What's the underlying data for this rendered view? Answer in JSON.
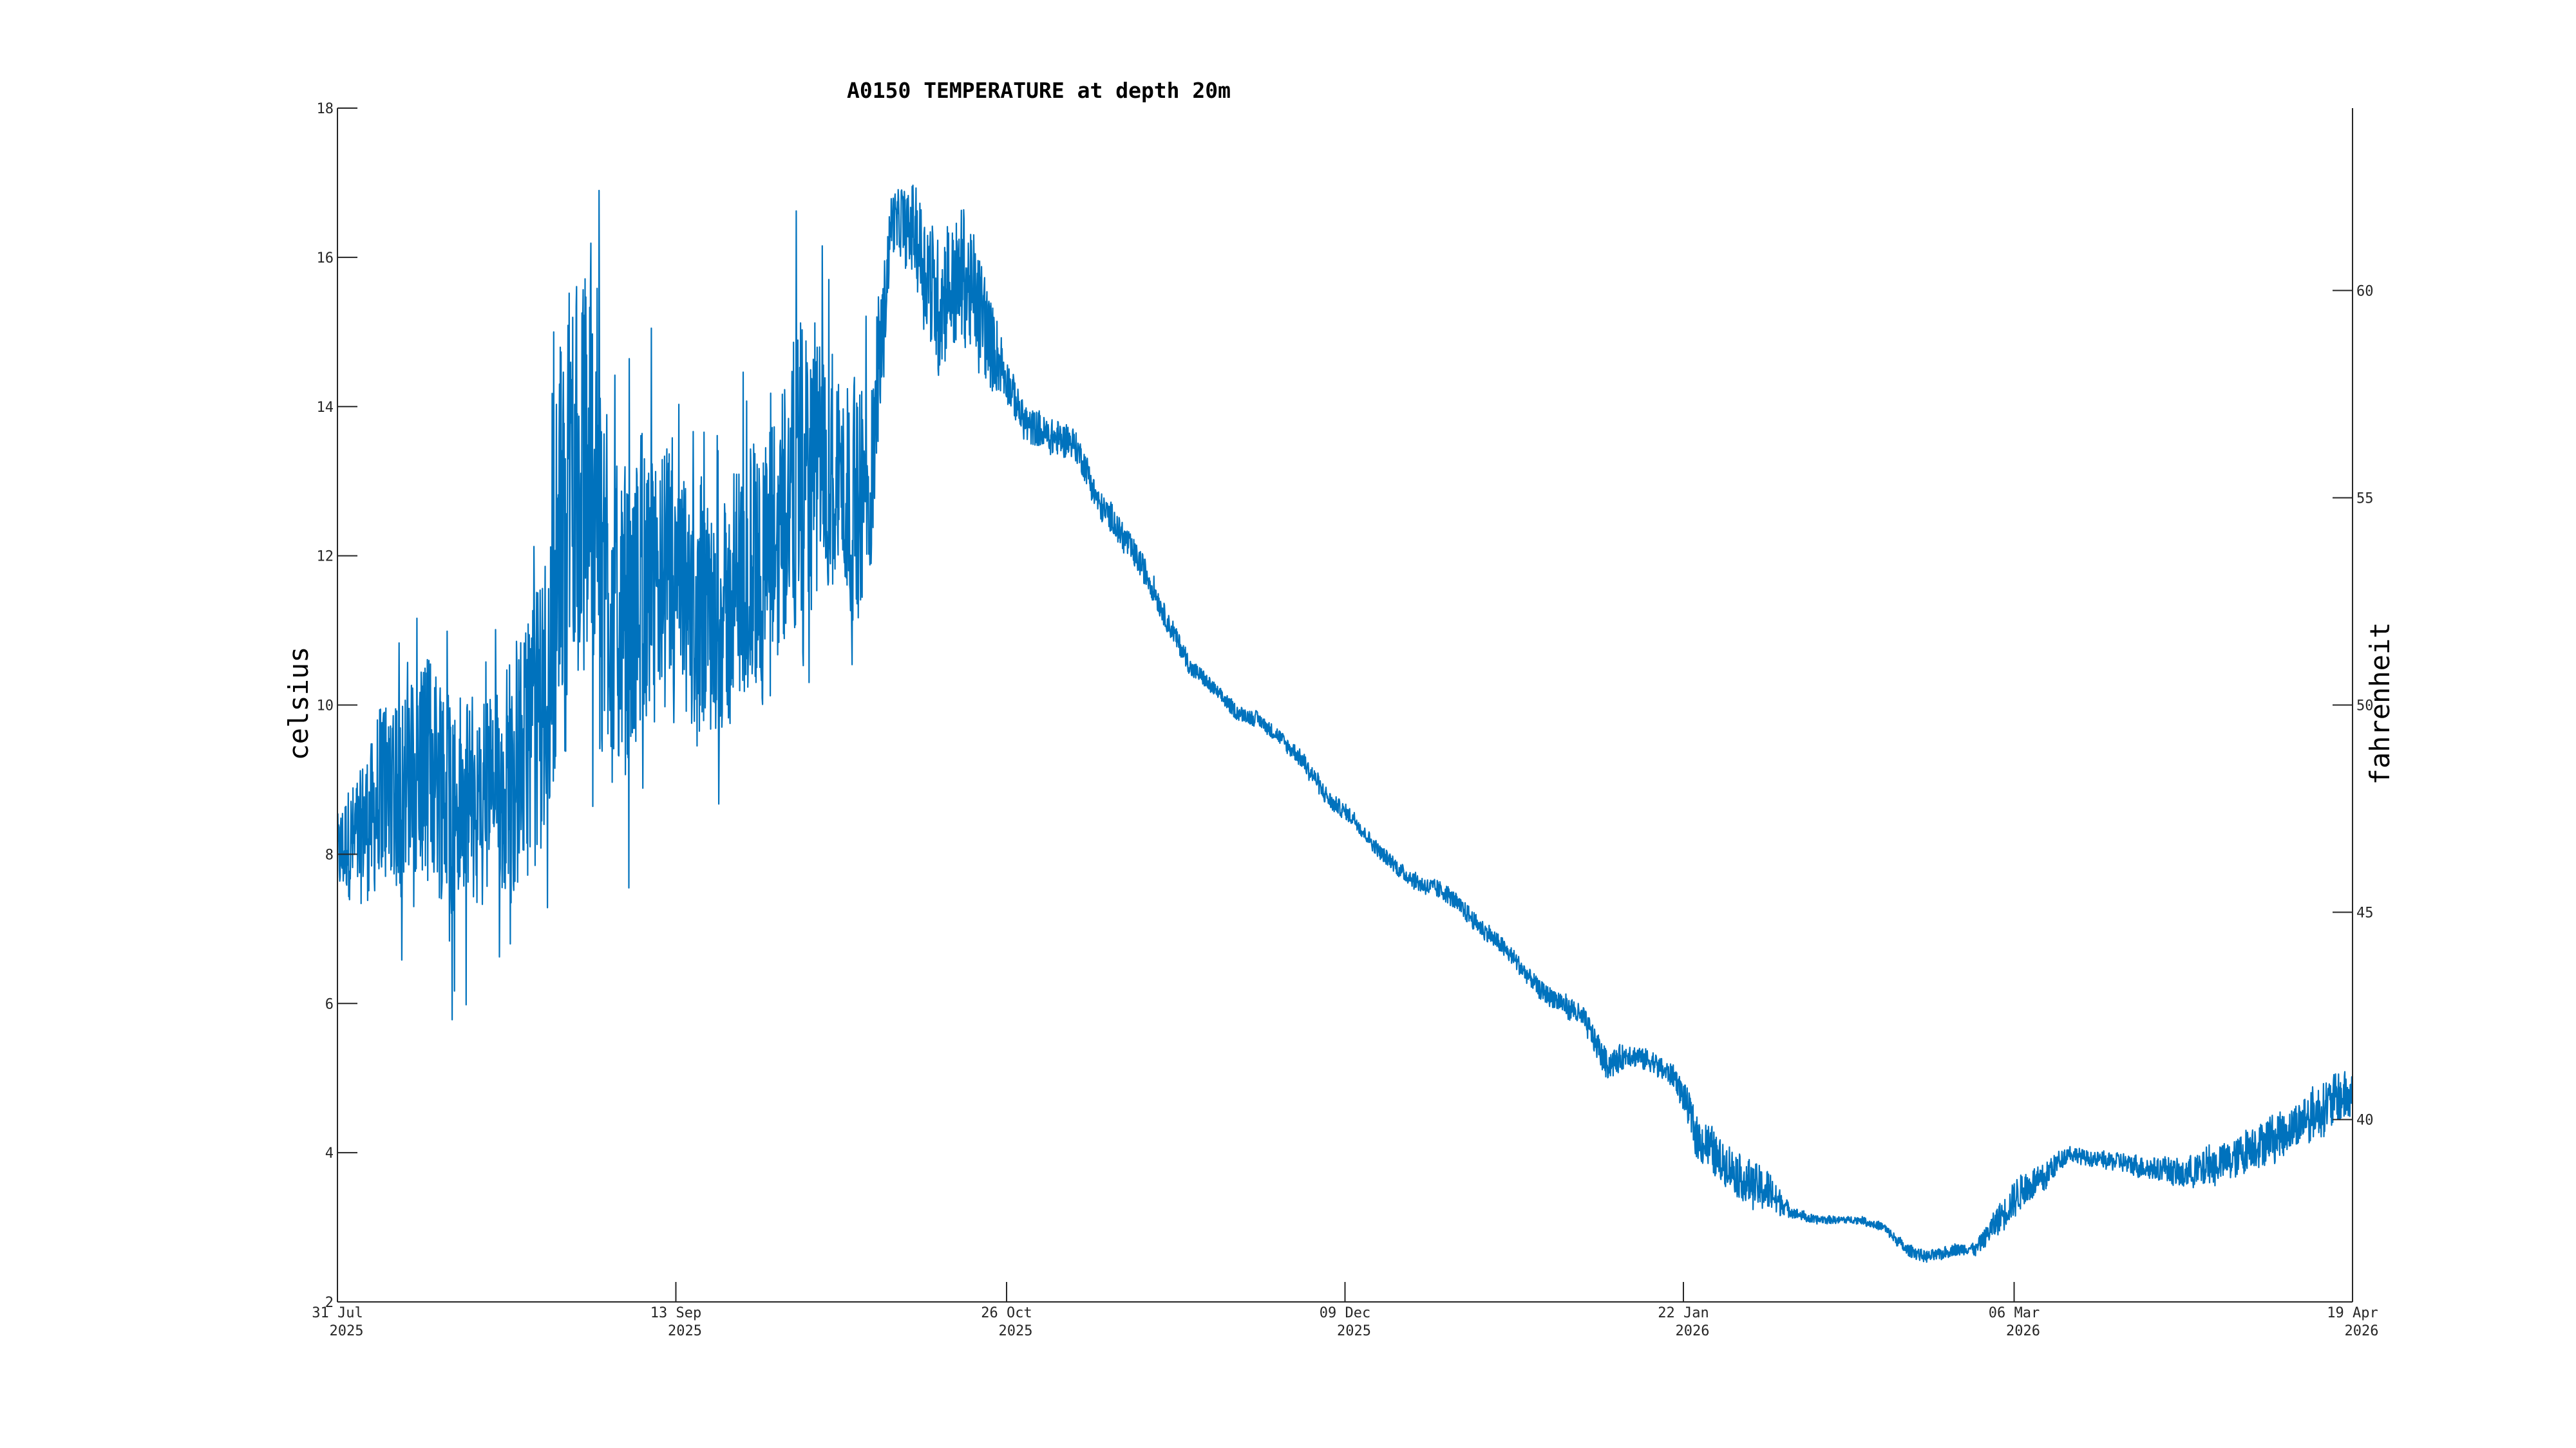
{
  "chart_data": {
    "type": "line",
    "title": "A0150 TEMPERATURE at depth 20m",
    "ylabel": "celsius",
    "ylabel_right": "fahrenheit",
    "xlabel": "",
    "ylim": [
      2,
      18
    ],
    "ylim_right": [
      35.6,
      64.4
    ],
    "xlim": [
      "2025-07-31",
      "2026-04-19"
    ],
    "grid": false,
    "legend": "none",
    "line_color": "#0072BD",
    "y_ticks": [
      "2",
      "4",
      "6",
      "8",
      "10",
      "12",
      "14",
      "16",
      "18"
    ],
    "y_ticks_right": [
      "40",
      "45",
      "50",
      "55",
      "60"
    ],
    "x_ticks": [
      {
        "date": "2025-07-31",
        "label": "31 Jul",
        "year": "2025"
      },
      {
        "date": "2025-09-13",
        "label": "13 Sep",
        "year": "2025"
      },
      {
        "date": "2025-10-26",
        "label": "26 Oct",
        "year": "2025"
      },
      {
        "date": "2025-12-09",
        "label": "09 Dec",
        "year": "2025"
      },
      {
        "date": "2026-01-22",
        "label": "22 Jan",
        "year": "2026"
      },
      {
        "date": "2026-03-06",
        "label": "06 Mar",
        "year": "2026"
      },
      {
        "date": "2026-04-19",
        "label": "19 Apr",
        "year": "2026"
      }
    ],
    "series": [
      {
        "x": [
          "2025-07-31",
          "2025-08-03",
          "2025-08-06",
          "2025-08-09",
          "2025-08-12",
          "2025-08-15",
          "2025-08-18",
          "2025-08-21",
          "2025-08-24",
          "2025-08-27",
          "2025-08-30",
          "2025-09-02",
          "2025-09-05",
          "2025-09-08",
          "2025-09-11",
          "2025-09-14",
          "2025-09-17",
          "2025-09-20",
          "2025-09-23",
          "2025-09-26",
          "2025-09-29",
          "2025-10-02",
          "2025-10-05",
          "2025-10-08",
          "2025-10-11",
          "2025-10-14",
          "2025-10-17",
          "2025-10-20",
          "2025-10-23",
          "2025-10-26",
          "2025-10-29",
          "2025-11-01",
          "2025-11-04",
          "2025-11-07",
          "2025-11-10",
          "2025-11-13",
          "2025-11-16",
          "2025-11-19",
          "2025-11-22",
          "2025-11-25",
          "2025-11-28",
          "2025-12-01",
          "2025-12-04",
          "2025-12-07",
          "2025-12-10",
          "2025-12-13",
          "2025-12-16",
          "2025-12-19",
          "2025-12-22",
          "2025-12-25",
          "2025-12-28",
          "2025-12-31",
          "2026-01-03",
          "2026-01-06",
          "2026-01-09",
          "2026-01-12",
          "2026-01-15",
          "2026-01-18",
          "2026-01-21",
          "2026-01-24",
          "2026-01-27",
          "2026-01-30",
          "2026-02-02",
          "2026-02-05",
          "2026-02-08",
          "2026-02-11",
          "2026-02-14",
          "2026-02-17",
          "2026-02-20",
          "2026-02-23",
          "2026-02-26",
          "2026-03-01",
          "2026-03-04",
          "2026-03-07",
          "2026-03-10",
          "2026-03-13",
          "2026-03-16",
          "2026-03-19",
          "2026-03-22",
          "2026-03-25",
          "2026-03-28",
          "2026-03-31",
          "2026-04-03",
          "2026-04-06",
          "2026-04-09",
          "2026-04-12",
          "2026-04-15",
          "2026-04-19"
        ],
        "y": [
          7.9,
          8.3,
          8.8,
          9.0,
          9.1,
          8.8,
          8.6,
          8.9,
          9.3,
          10.2,
          12.8,
          13.2,
          11.0,
          11.4,
          11.6,
          11.2,
          10.9,
          11.3,
          11.8,
          12.4,
          13.0,
          13.3,
          12.9,
          12.7,
          16.5,
          16.4,
          15.4,
          15.7,
          15.2,
          14.3,
          13.7,
          13.6,
          13.5,
          12.7,
          12.3,
          11.8,
          11.1,
          10.5,
          10.2,
          9.9,
          9.8,
          9.5,
          9.2,
          8.7,
          8.5,
          8.1,
          7.8,
          7.6,
          7.5,
          7.2,
          6.9,
          6.6,
          6.2,
          6.0,
          5.8,
          5.2,
          5.3,
          5.2,
          5.0,
          4.2,
          3.9,
          3.6,
          3.5,
          3.2,
          3.1,
          3.1,
          3.1,
          3.0,
          2.7,
          2.6,
          2.7,
          2.7,
          3.1,
          3.5,
          3.7,
          4.0,
          3.9,
          3.9,
          3.8,
          3.8,
          3.7,
          3.8,
          3.9,
          4.1,
          4.2,
          4.4,
          4.6,
          4.8
        ],
        "noise_amplitude": [
          0.6,
          0.9,
          1.3,
          1.5,
          1.6,
          1.6,
          1.3,
          1.4,
          1.6,
          2.0,
          2.7,
          2.9,
          2.1,
          1.9,
          1.8,
          1.6,
          1.5,
          1.6,
          1.8,
          1.9,
          2.0,
          1.7,
          1.6,
          1.5,
          0.4,
          0.6,
          1.0,
          0.9,
          0.8,
          0.3,
          0.25,
          0.25,
          0.2,
          0.2,
          0.2,
          0.18,
          0.15,
          0.12,
          0.1,
          0.1,
          0.1,
          0.1,
          0.12,
          0.12,
          0.1,
          0.1,
          0.1,
          0.12,
          0.12,
          0.12,
          0.12,
          0.12,
          0.12,
          0.15,
          0.15,
          0.2,
          0.15,
          0.15,
          0.15,
          0.3,
          0.3,
          0.3,
          0.3,
          0.08,
          0.06,
          0.05,
          0.05,
          0.06,
          0.08,
          0.08,
          0.08,
          0.08,
          0.2,
          0.25,
          0.2,
          0.1,
          0.1,
          0.12,
          0.15,
          0.15,
          0.2,
          0.25,
          0.25,
          0.3,
          0.3,
          0.3,
          0.35,
          0.35
        ]
      }
    ]
  }
}
